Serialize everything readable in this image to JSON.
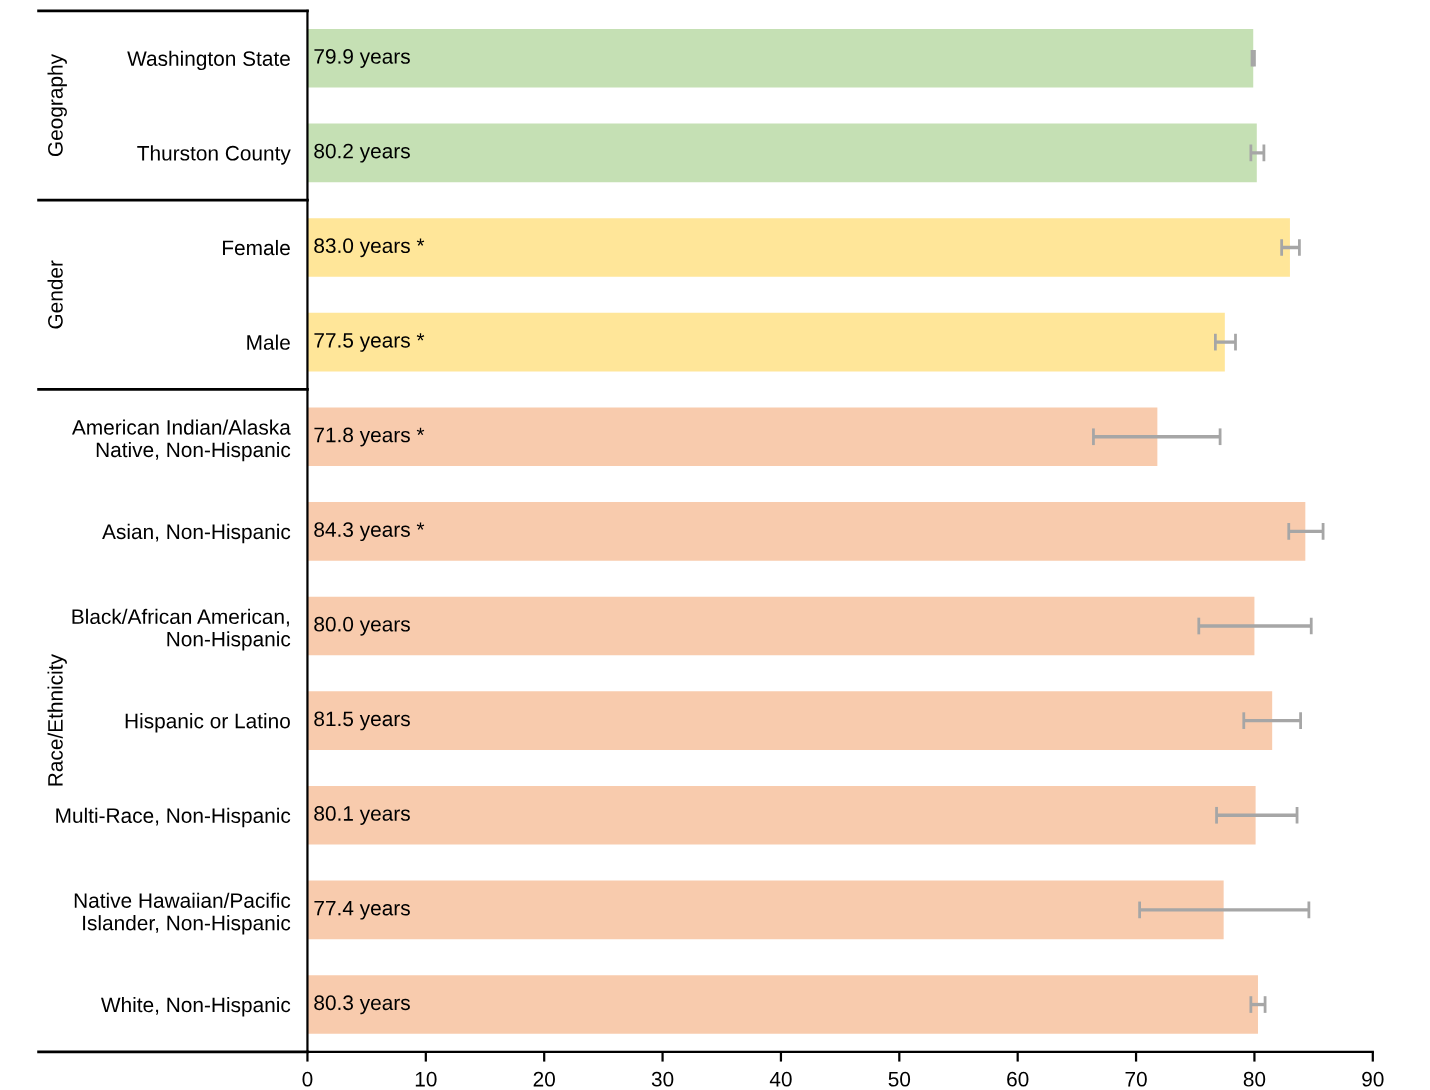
{
  "chart_data": {
    "type": "bar",
    "orientation": "horizontal",
    "categories": [
      "Washington State",
      "Thurston County",
      "Female",
      "Male",
      "American Indian/Alaska\nNative, Non-Hispanic",
      "Asian, Non-Hispanic",
      "Black/African American,\nNon-Hispanic",
      "Hispanic or Latino",
      "Multi-Race, Non-Hispanic",
      "Native Hawaiian/Pacific\nIslander, Non-Hispanic",
      "White, Non-Hispanic"
    ],
    "values": [
      79.9,
      80.2,
      83.0,
      77.5,
      71.8,
      84.3,
      80.0,
      81.5,
      80.1,
      77.4,
      80.3
    ],
    "colors": [
      "#c5e0b4",
      "#c5e0b4",
      "#ffe699",
      "#ffe699",
      "#f8cbad",
      "#f8cbad",
      "#f8cbad",
      "#f8cbad",
      "#f8cbad",
      "#f8cbad",
      "#f8cbad"
    ],
    "errors": [
      [
        79.8,
        80.0
      ],
      [
        79.7,
        80.8
      ],
      [
        82.3,
        83.8
      ],
      [
        76.7,
        78.4
      ],
      [
        66.4,
        77.1
      ],
      [
        82.9,
        85.8
      ],
      [
        75.3,
        84.8
      ],
      [
        79.1,
        83.9
      ],
      [
        76.8,
        83.6
      ],
      [
        70.3,
        84.6
      ],
      [
        79.7,
        80.9
      ]
    ],
    "value_labels": [
      "79.9 years",
      "80.2 years",
      "83.0 years *",
      "77.5 years *",
      "71.8 years *",
      "84.3 years *",
      "80.0 years",
      "81.5 years",
      "80.1 years",
      "77.4 years",
      "80.3 years"
    ],
    "annotations": [
      "Geography",
      "Gender",
      "Race/Ethnicity"
    ],
    "xlim": [
      0,
      90
    ],
    "xticks": [
      0,
      10,
      20,
      30,
      40,
      50,
      60,
      70,
      80,
      90
    ],
    "grid": false,
    "legend": false
  }
}
